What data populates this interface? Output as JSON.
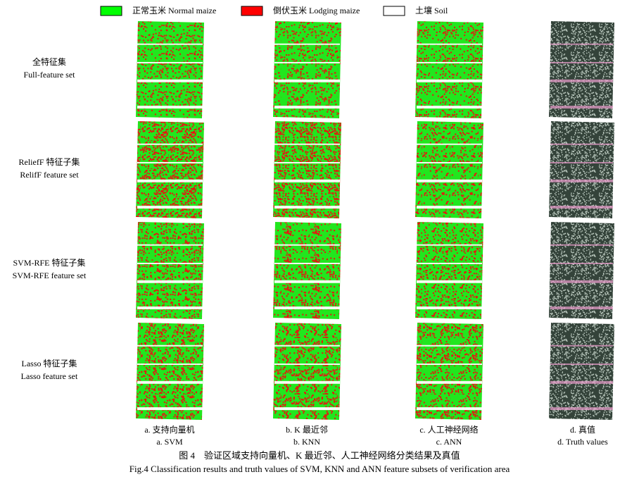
{
  "legend": [
    {
      "label": "正常玉米 Normal maize",
      "color": "#00ff00"
    },
    {
      "label": "倒伏玉米 Lodging maize",
      "color": "#ff0000"
    },
    {
      "label": "土壤 Soil",
      "color": "#ffffff"
    }
  ],
  "rows": [
    {
      "zh": "全特征集",
      "en": "Full-feature set"
    },
    {
      "zh": "ReliefF 特征子集",
      "en": "RelifF feature set"
    },
    {
      "zh": "SVM-RFE 特征子集",
      "en": "SVM-RFE feature set"
    },
    {
      "zh": "Lasso  特征子集",
      "en": "Lasso feature set"
    }
  ],
  "columns": [
    {
      "zh": "a.  支持向量机",
      "en": "a. SVM"
    },
    {
      "zh": "b. K 最近邻",
      "en": "b. KNN"
    },
    {
      "zh": "c.  人工神经网络",
      "en": "c. ANN"
    },
    {
      "zh": "d.  真值",
      "en": "d. Truth values"
    }
  ],
  "caption": {
    "zh": "图 4　验证区域支持向量机、K 最近邻、人工神经网络分类结果及真值",
    "en": "Fig.4    Classification results and truth values of SVM, KNN and ANN feature subsets of verification area"
  }
}
